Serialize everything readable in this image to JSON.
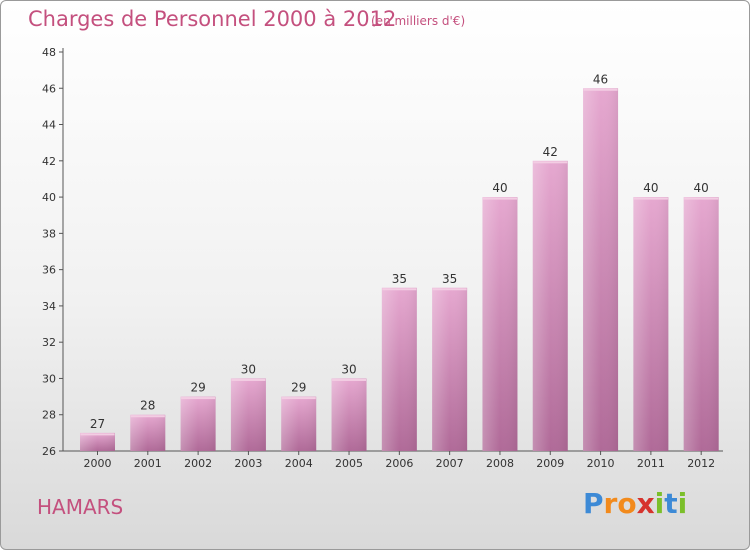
{
  "header": {
    "title": "Charges de Personnel 2000 à 2012",
    "subtitle": "(en milliers d'€)"
  },
  "footer": {
    "city": "HAMARS",
    "logo_letters": [
      "P",
      "r",
      "o",
      "x",
      "i",
      "t",
      "i"
    ],
    "logo_colors": [
      "#3d8ad6",
      "#f28a1c",
      "#f28a1c",
      "#d6332d",
      "#7bbf2a",
      "#3d8ad6",
      "#7bbf2a"
    ]
  },
  "chart_data": {
    "type": "bar",
    "title": "Charges de Personnel 2000 à 2012",
    "subtitle": "(en milliers d'€)",
    "categories": [
      "2000",
      "2001",
      "2002",
      "2003",
      "2004",
      "2005",
      "2006",
      "2007",
      "2008",
      "2009",
      "2010",
      "2011",
      "2012"
    ],
    "values": [
      27,
      28,
      29,
      30,
      29,
      30,
      35,
      35,
      40,
      42,
      46,
      40,
      40
    ],
    "value_labels": [
      "27",
      "28",
      "29",
      "30",
      "29",
      "30",
      "35",
      "35",
      "40",
      "42",
      "46",
      "40",
      "40"
    ],
    "yticks": [
      "26",
      "28",
      "30",
      "32",
      "34",
      "36",
      "38",
      "40",
      "42",
      "44",
      "46",
      "48"
    ],
    "ylim": [
      26,
      48
    ],
    "grid": false,
    "legend": "none",
    "bar_color": "#d78ab8"
  }
}
